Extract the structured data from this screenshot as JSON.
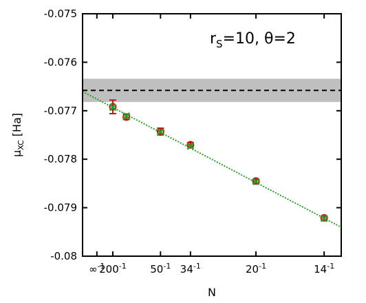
{
  "chart_data": {
    "type": "scatter",
    "xlabel": "N",
    "ylabel_main": "μ",
    "ylabel_sub": "XC",
    "ylabel_unit": " [Ha]",
    "annotation": {
      "r": "r",
      "r_sub": "S",
      "rest": "=10, θ=2"
    },
    "x_axis": {
      "scale": "reciprocal",
      "xlim_inverse": [
        -0.0045,
        0.0768
      ],
      "ticks": [
        {
          "inv": 0,
          "base": "∞",
          "exp": "-1"
        },
        {
          "inv": 0.005,
          "base": "200",
          "exp": "-1"
        },
        {
          "inv": 0.02,
          "base": "50",
          "exp": "-1"
        },
        {
          "inv": 0.0294118,
          "base": "34",
          "exp": "-1"
        },
        {
          "inv": 0.05,
          "base": "20",
          "exp": "-1"
        },
        {
          "inv": 0.0714286,
          "base": "14",
          "exp": "-1"
        }
      ]
    },
    "ylim": [
      -0.08,
      -0.075
    ],
    "y_ticks": [
      "-0.08",
      "-0.079",
      "-0.078",
      "-0.077",
      "-0.076",
      "-0.075"
    ],
    "y_tick_values": [
      -0.08,
      -0.079,
      -0.078,
      -0.077,
      -0.076,
      -0.075
    ],
    "reference_band": {
      "center": -0.07658,
      "lower": -0.07682,
      "upper": -0.07634,
      "color": "#bfbfbf",
      "line_color": "#000000"
    },
    "fit_line": {
      "intercept": -0.07676,
      "slope": -0.0344,
      "color": "#22a022"
    },
    "series": [
      {
        "marker": "circle",
        "color": "#cc1111",
        "points": [
          {
            "N": 200,
            "y": -0.07692,
            "err": 0.00014
          },
          {
            "N": 108,
            "y": -0.07713,
            "err": 5e-05
          },
          {
            "N": 50,
            "y": -0.07743,
            "err": 7e-05
          },
          {
            "N": 34,
            "y": -0.0777,
            "err": 4e-05
          },
          {
            "N": 20,
            "y": -0.07845,
            "err": 4e-05
          },
          {
            "N": 14,
            "y": -0.07921,
            "err": 3e-05
          }
        ]
      },
      {
        "marker": "x",
        "color": "#22a022",
        "points": [
          {
            "N": 200,
            "y": -0.07693
          },
          {
            "N": 108,
            "y": -0.07711
          },
          {
            "N": 50,
            "y": -0.07744
          },
          {
            "N": 34,
            "y": -0.07773
          },
          {
            "N": 20,
            "y": -0.07846
          },
          {
            "N": 14,
            "y": -0.07922
          }
        ]
      }
    ]
  }
}
